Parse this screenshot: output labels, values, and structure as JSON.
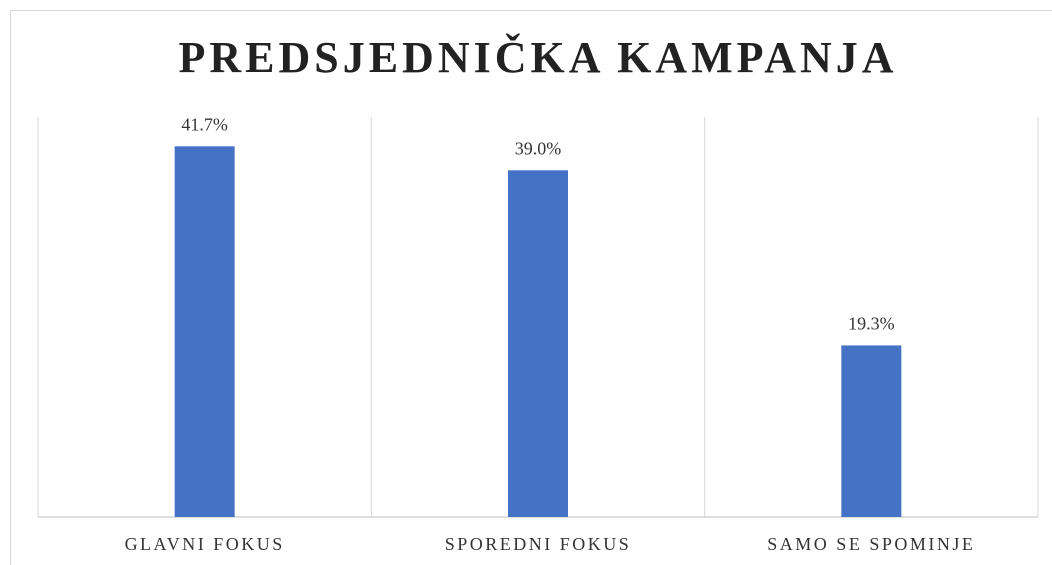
{
  "chart_data": {
    "type": "bar",
    "title": "PREDSJEDNIČKA KAMPANJA",
    "categories": [
      "GLAVNI FOKUS",
      "SPOREDNI FOKUS",
      "SAMO SE SPOMINJE"
    ],
    "values": [
      41.7,
      39.0,
      19.3
    ],
    "value_labels": [
      "41.7%",
      "39.0%",
      "19.3%"
    ],
    "color": "#4472c4",
    "ylim": [
      0,
      45
    ],
    "grid": true
  }
}
